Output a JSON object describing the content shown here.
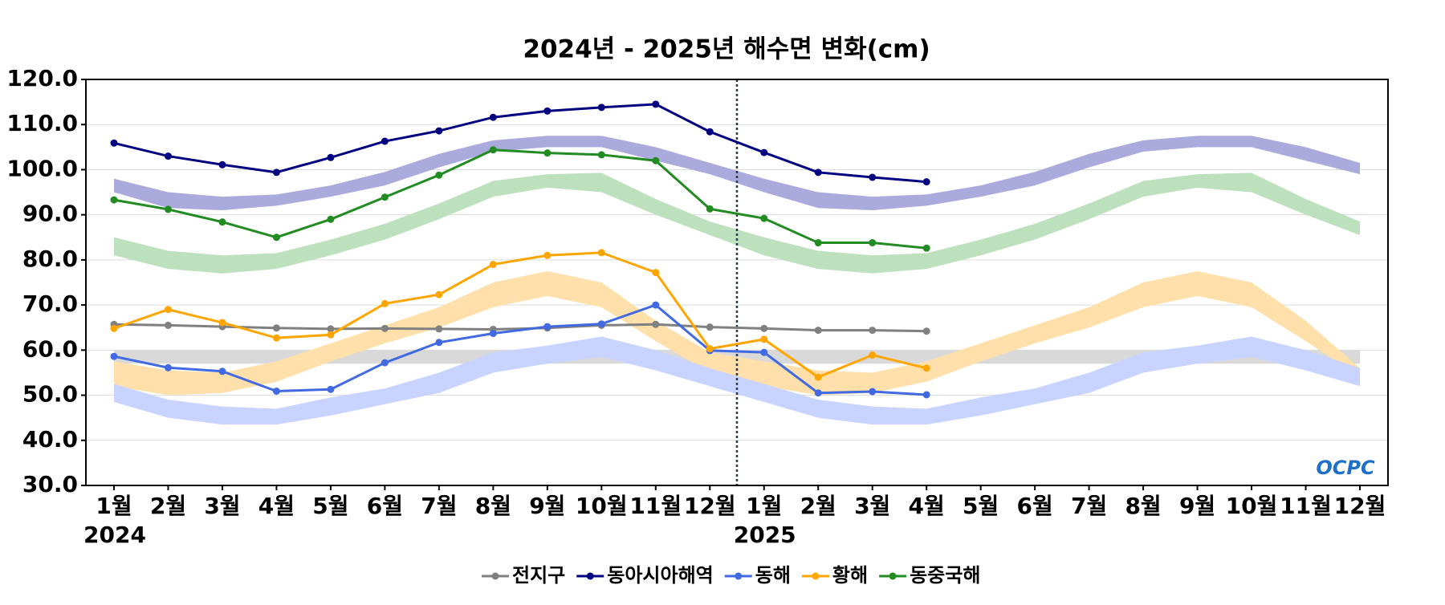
{
  "chart_data": {
    "type": "line",
    "title": "2024년 - 2025년 해수면 변화(cm)",
    "categories": [
      "1월",
      "2월",
      "3월",
      "4월",
      "5월",
      "6월",
      "7월",
      "8월",
      "9월",
      "10월",
      "11월",
      "12월",
      "1월",
      "2월",
      "3월",
      "4월",
      "5월",
      "6월",
      "7월",
      "8월",
      "9월",
      "10월",
      "11월",
      "12월"
    ],
    "years": [
      "2024",
      "2025"
    ],
    "logo": "OCPC",
    "ylim": [
      30,
      120
    ],
    "yticks": [
      {
        "value": 30,
        "label": "30.0"
      },
      {
        "value": 40,
        "label": "40.0"
      },
      {
        "value": 50,
        "label": "50.0"
      },
      {
        "value": 60,
        "label": "60.0"
      },
      {
        "value": 70,
        "label": "70.0"
      },
      {
        "value": 80,
        "label": "80.0"
      },
      {
        "value": 90,
        "label": "90.0"
      },
      {
        "value": 100,
        "label": "100.0"
      },
      {
        "value": 110,
        "label": "110.0"
      },
      {
        "value": 120,
        "label": "120.0"
      }
    ],
    "grid": true,
    "series": [
      {
        "name": "전지구",
        "color": "#808080",
        "values": [
          65.7,
          65.5,
          65.2,
          64.9,
          64.7,
          64.8,
          64.7,
          64.6,
          64.9,
          65.5,
          65.7,
          65.1,
          64.8,
          64.4,
          64.4,
          64.2,
          null,
          null,
          null,
          null,
          null,
          null,
          null,
          null
        ]
      },
      {
        "name": "동아시아해역",
        "color": "#000080",
        "values": [
          105.9,
          103.0,
          101.1,
          99.4,
          102.7,
          106.3,
          108.6,
          111.6,
          113.0,
          113.8,
          114.5,
          108.4,
          103.8,
          99.4,
          98.3,
          97.3,
          null,
          null,
          null,
          null,
          null,
          null,
          null,
          null
        ]
      },
      {
        "name": "동해",
        "color": "#4169e1",
        "values": [
          58.6,
          56.1,
          55.3,
          50.9,
          51.3,
          57.2,
          61.7,
          63.7,
          65.2,
          65.8,
          70.0,
          59.9,
          59.5,
          50.5,
          50.8,
          50.1,
          null,
          null,
          null,
          null,
          null,
          null,
          null,
          null
        ]
      },
      {
        "name": "황해",
        "color": "#ffa500",
        "values": [
          64.8,
          69.0,
          66.1,
          62.7,
          63.4,
          70.3,
          72.3,
          79.0,
          81.0,
          81.6,
          77.2,
          60.3,
          62.4,
          54.0,
          58.9,
          56.0,
          null,
          null,
          null,
          null,
          null,
          null,
          null,
          null
        ]
      },
      {
        "name": "동중국해",
        "color": "#228b22",
        "values": [
          93.3,
          91.2,
          88.4,
          85.0,
          89.0,
          93.9,
          98.8,
          104.4,
          103.7,
          103.3,
          102.0,
          91.3,
          89.2,
          83.8,
          83.8,
          82.6,
          null,
          null,
          null,
          null,
          null,
          null,
          null,
          null
        ]
      }
    ],
    "bands": [
      {
        "color": "#d9d9d9",
        "low": [
          57,
          57,
          57,
          57,
          57,
          57,
          57,
          57,
          57,
          57,
          57,
          57,
          57,
          57,
          57,
          57,
          57,
          57,
          57,
          57,
          57,
          57,
          57,
          57
        ],
        "high": [
          60,
          60,
          60,
          60,
          60,
          60,
          60,
          60,
          60,
          60,
          60,
          60,
          60,
          60,
          60,
          60,
          60,
          60,
          60,
          60,
          60,
          60,
          60,
          60
        ]
      },
      {
        "color": "#aaaadd",
        "low": [
          95,
          91.5,
          91,
          92,
          94,
          96.5,
          100.5,
          104,
          105,
          105,
          102,
          99,
          95,
          91.5,
          91,
          92,
          94,
          96.5,
          100.5,
          104,
          105,
          105,
          102,
          99
        ],
        "high": [
          98,
          95,
          94,
          94.5,
          96.5,
          99.5,
          103.5,
          106.5,
          107.5,
          107.5,
          105,
          101.5,
          98,
          95,
          94,
          94.5,
          96.5,
          99.5,
          103.5,
          106.5,
          107.5,
          107.5,
          105,
          101.5
        ]
      },
      {
        "color": "#bde0bd",
        "low": [
          81,
          78,
          77,
          78,
          81,
          84.5,
          89,
          94,
          96,
          95,
          90,
          85.5,
          81,
          78,
          77,
          78,
          81,
          84.5,
          89,
          94,
          96,
          95,
          90,
          85.5
        ],
        "high": [
          85,
          82,
          81,
          81.5,
          84.5,
          88,
          92.5,
          97.5,
          99,
          99.3,
          93.5,
          88.5,
          85,
          82,
          81,
          81.5,
          84.5,
          88,
          92.5,
          97.5,
          99,
          99.3,
          93.5,
          88.5
        ]
      },
      {
        "color": "#ffe0aa",
        "low": [
          52,
          50,
          50.5,
          53,
          57.5,
          61.5,
          65,
          69.5,
          72,
          69.5,
          62,
          55,
          52,
          50,
          50.5,
          53,
          57.5,
          61.5,
          65,
          69.5,
          72,
          69.5,
          62,
          54
        ],
        "high": [
          57.5,
          55.5,
          55,
          57.5,
          61.5,
          65.5,
          69.5,
          75,
          77.5,
          75,
          66.5,
          59.5,
          57.5,
          55.5,
          55,
          57.5,
          61.5,
          65.5,
          69.5,
          75,
          77.5,
          75,
          66.5,
          56
        ]
      },
      {
        "color": "#c8d4ff",
        "low": [
          48.5,
          45,
          43.5,
          43.5,
          45.5,
          48,
          50.5,
          55,
          57,
          58.5,
          55.5,
          52,
          48.5,
          45,
          43.5,
          43.5,
          45.5,
          48,
          50.5,
          55,
          57,
          58.5,
          55.5,
          52
        ],
        "high": [
          52.5,
          49,
          47.5,
          47,
          49.5,
          51.5,
          55,
          59.5,
          61,
          63,
          60,
          56,
          52.5,
          49,
          47.5,
          47,
          49.5,
          51.5,
          55,
          59.5,
          61,
          63,
          60,
          56
        ]
      }
    ]
  }
}
